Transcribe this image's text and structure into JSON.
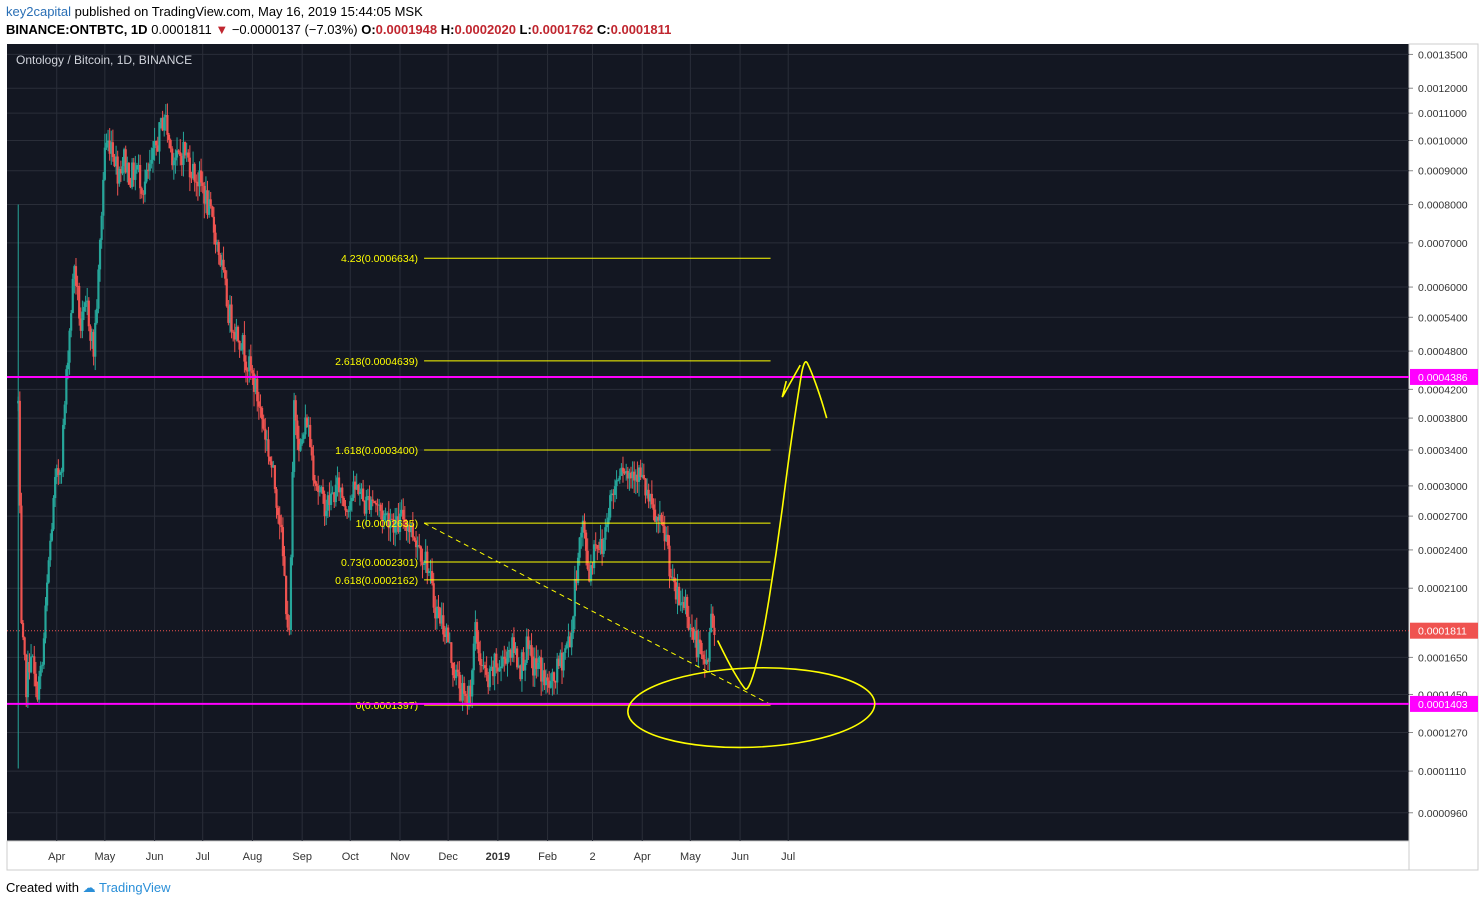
{
  "header": {
    "author": "key2capital",
    "published_text": "published on TradingView.com, May 16, 2019 15:44:05 MSK",
    "symbol": "BINANCE:ONTBTC, 1D",
    "last": "0.0001811",
    "change": "−0.0000137 (−7.03%)",
    "o_label": "O:",
    "o_value": "0.0001948",
    "h_label": "H:",
    "h_value": "0.0002020",
    "l_label": "L:",
    "l_value": "0.0001762",
    "c_label": "C:",
    "c_value": "0.0001811",
    "down_arrow": "▼"
  },
  "footer": {
    "created_with": "Created with",
    "brand": "TradingView"
  },
  "colors": {
    "background": "#131722",
    "grid": "#2a2e39",
    "up": "#26a69a",
    "down": "#ef5350",
    "fib": "#ffff00",
    "magenta": "#ff00ff",
    "last_price": "#ef5350"
  },
  "chart_data": {
    "type": "candlestick",
    "title": "Ontology / Bitcoin, 1D, BINANCE",
    "y_scale": "log",
    "ylim": [
      8.7e-05,
      0.0014
    ],
    "xlim": [
      "2019-03-01",
      "2020-07-22"
    ],
    "y_ticks": [
      0.00135,
      0.0012,
      0.0011,
      0.001,
      0.0009,
      0.0008,
      0.0007,
      0.0006,
      0.00054,
      0.00048,
      0.00042,
      0.00038,
      0.00034,
      0.0003,
      0.00027,
      0.00024,
      0.00021,
      0.000165,
      0.000145,
      0.000127,
      0.000111,
      9.6e-05
    ],
    "x_ticks": [
      {
        "label": "Apr",
        "date": "2018-04-01"
      },
      {
        "label": "May",
        "date": "2018-05-01"
      },
      {
        "label": "Jun",
        "date": "2018-06-01"
      },
      {
        "label": "Jul",
        "date": "2018-07-01"
      },
      {
        "label": "Aug",
        "date": "2018-08-01"
      },
      {
        "label": "Sep",
        "date": "2018-09-01"
      },
      {
        "label": "Oct",
        "date": "2018-10-01"
      },
      {
        "label": "Nov",
        "date": "2018-11-01"
      },
      {
        "label": "Dec",
        "date": "2018-12-01"
      },
      {
        "label": "2019",
        "date": "2019-01-01"
      },
      {
        "label": "Feb",
        "date": "2019-02-01"
      },
      {
        "label": "2",
        "date": "2019-03-01"
      },
      {
        "label": "Apr",
        "date": "2019-04-01"
      },
      {
        "label": "May",
        "date": "2019-05-01"
      },
      {
        "label": "Jun",
        "date": "2019-06-01"
      },
      {
        "label": "Jul",
        "date": "2019-07-01"
      }
    ],
    "price_path": [
      [
        "2018-03-08",
        0.0004
      ],
      [
        "2018-03-10",
        0.00018
      ],
      [
        "2018-03-13",
        0.00015
      ],
      [
        "2018-03-16",
        0.00017
      ],
      [
        "2018-03-19",
        0.000145
      ],
      [
        "2018-03-23",
        0.00016
      ],
      [
        "2018-03-27",
        0.00023
      ],
      [
        "2018-03-31",
        0.0003
      ],
      [
        "2018-04-04",
        0.00033
      ],
      [
        "2018-04-08",
        0.00048
      ],
      [
        "2018-04-12",
        0.00065
      ],
      [
        "2018-04-16",
        0.00052
      ],
      [
        "2018-04-20",
        0.00056
      ],
      [
        "2018-04-24",
        0.00048
      ],
      [
        "2018-04-27",
        0.00062
      ],
      [
        "2018-05-01",
        0.00098
      ],
      [
        "2018-05-05",
        0.001
      ],
      [
        "2018-05-09",
        0.0009
      ],
      [
        "2018-05-13",
        0.00094
      ],
      [
        "2018-05-17",
        0.00088
      ],
      [
        "2018-05-21",
        0.00091
      ],
      [
        "2018-05-25",
        0.00085
      ],
      [
        "2018-05-29",
        0.0009
      ],
      [
        "2018-06-03",
        0.001
      ],
      [
        "2018-06-07",
        0.0011
      ],
      [
        "2018-06-11",
        0.00097
      ],
      [
        "2018-06-15",
        0.00093
      ],
      [
        "2018-06-19",
        0.00097
      ],
      [
        "2018-06-23",
        0.00092
      ],
      [
        "2018-06-27",
        0.00088
      ],
      [
        "2018-07-01",
        0.00085
      ],
      [
        "2018-07-05",
        0.00078
      ],
      [
        "2018-07-09",
        0.00072
      ],
      [
        "2018-07-13",
        0.00064
      ],
      [
        "2018-07-17",
        0.00055
      ],
      [
        "2018-07-21",
        0.00052
      ],
      [
        "2018-07-25",
        0.0005
      ],
      [
        "2018-07-29",
        0.00046
      ],
      [
        "2018-08-02",
        0.00043
      ],
      [
        "2018-08-06",
        0.00039
      ],
      [
        "2018-08-10",
        0.00035
      ],
      [
        "2018-08-14",
        0.00031
      ],
      [
        "2018-08-18",
        0.00027
      ],
      [
        "2018-08-22",
        0.0002
      ],
      [
        "2018-08-24",
        0.000175
      ],
      [
        "2018-08-27",
        0.0004
      ],
      [
        "2018-08-31",
        0.00034
      ],
      [
        "2018-09-04",
        0.00038
      ],
      [
        "2018-09-08",
        0.00032
      ],
      [
        "2018-09-12",
        0.00029
      ],
      [
        "2018-09-16",
        0.00028
      ],
      [
        "2018-09-20",
        0.00029
      ],
      [
        "2018-09-24",
        0.0003
      ],
      [
        "2018-09-28",
        0.00028
      ],
      [
        "2018-10-02",
        0.00029
      ],
      [
        "2018-10-06",
        0.0003
      ],
      [
        "2018-10-10",
        0.00028
      ],
      [
        "2018-10-14",
        0.00029
      ],
      [
        "2018-10-18",
        0.00028
      ],
      [
        "2018-10-22",
        0.00027
      ],
      [
        "2018-10-26",
        0.00027
      ],
      [
        "2018-10-30",
        0.00026
      ],
      [
        "2018-11-03",
        0.00027
      ],
      [
        "2018-11-07",
        0.00026
      ],
      [
        "2018-11-11",
        0.00025
      ],
      [
        "2018-11-14",
        0.00024
      ],
      [
        "2018-11-18",
        0.00023
      ],
      [
        "2018-11-22",
        0.0002
      ],
      [
        "2018-11-26",
        0.00019
      ],
      [
        "2018-11-30",
        0.00018
      ],
      [
        "2018-12-04",
        0.00016
      ],
      [
        "2018-12-08",
        0.00015
      ],
      [
        "2018-12-12",
        0.00014
      ],
      [
        "2018-12-15",
        0.00015
      ],
      [
        "2018-12-18",
        0.00018
      ],
      [
        "2018-12-22",
        0.00016
      ],
      [
        "2018-12-26",
        0.00015
      ],
      [
        "2018-12-30",
        0.00016
      ],
      [
        "2019-01-03",
        0.00016
      ],
      [
        "2019-01-07",
        0.00017
      ],
      [
        "2019-01-11",
        0.00017
      ],
      [
        "2019-01-15",
        0.00016
      ],
      [
        "2019-01-19",
        0.00017
      ],
      [
        "2019-01-23",
        0.00016
      ],
      [
        "2019-01-27",
        0.00016
      ],
      [
        "2019-01-31",
        0.00015
      ],
      [
        "2019-02-04",
        0.00015
      ],
      [
        "2019-02-08",
        0.00016
      ],
      [
        "2019-02-12",
        0.00017
      ],
      [
        "2019-02-16",
        0.00018
      ],
      [
        "2019-02-20",
        0.00024
      ],
      [
        "2019-02-23",
        0.00026
      ],
      [
        "2019-02-27",
        0.00022
      ],
      [
        "2019-03-03",
        0.00025
      ],
      [
        "2019-03-07",
        0.00024
      ],
      [
        "2019-03-11",
        0.00028
      ],
      [
        "2019-03-15",
        0.0003
      ],
      [
        "2019-03-19",
        0.00033
      ],
      [
        "2019-03-23",
        0.00031
      ],
      [
        "2019-03-27",
        0.00032
      ],
      [
        "2019-03-31",
        0.00031
      ],
      [
        "2019-04-04",
        0.00029
      ],
      [
        "2019-04-08",
        0.00027
      ],
      [
        "2019-04-12",
        0.00026
      ],
      [
        "2019-04-16",
        0.00025
      ],
      [
        "2019-04-20",
        0.00021
      ],
      [
        "2019-04-24",
        0.0002
      ],
      [
        "2019-04-28",
        0.0002
      ],
      [
        "2019-05-02",
        0.00018
      ],
      [
        "2019-05-06",
        0.00017
      ],
      [
        "2019-05-09",
        0.00016
      ],
      [
        "2019-05-12",
        0.000165
      ],
      [
        "2019-05-14",
        0.00019
      ],
      [
        "2019-05-16",
        0.0001811
      ]
    ],
    "fib_levels": [
      {
        "label": "4.23(0.0006634)",
        "value": 0.0006634
      },
      {
        "label": "2.618(0.0004639)",
        "value": 0.0004639
      },
      {
        "label": "1.618(0.0003400)",
        "value": 0.00034
      },
      {
        "label": "1(0.0002635)",
        "value": 0.0002635
      },
      {
        "label": "0.73(0.0002301)",
        "value": 0.0002301
      },
      {
        "label": "0.618(0.0002162)",
        "value": 0.0002162
      },
      {
        "label": "0(0.0001397)",
        "value": 0.0001397
      }
    ],
    "fib_start": "2018-11-16",
    "fib_end": "2019-06-20",
    "horizontal_lines": [
      {
        "label": "0.0004386",
        "value": 0.0004386,
        "color": "#ff00ff"
      },
      {
        "label": "0.0001403",
        "value": 0.0001403,
        "color": "#ff00ff"
      }
    ],
    "last_price": {
      "label": "0.0001811",
      "value": 0.0001811
    },
    "trendline": {
      "start": [
        "2018-11-16",
        0.0002635
      ],
      "end": [
        "2019-06-20",
        0.00014
      ]
    },
    "forecast_path": [
      [
        "2019-05-18",
        0.000175
      ],
      [
        "2019-05-26",
        0.00016
      ],
      [
        "2019-06-02",
        0.00015
      ],
      [
        "2019-06-06",
        0.000146
      ],
      [
        "2019-06-14",
        0.00017
      ],
      [
        "2019-06-24",
        0.00024
      ],
      [
        "2019-07-02",
        0.00034
      ],
      [
        "2019-07-07",
        0.00041
      ],
      [
        "2019-07-11",
        0.00047
      ],
      [
        "2019-07-15",
        0.00045
      ],
      [
        "2019-07-21",
        0.00041
      ],
      [
        "2019-07-25",
        0.00038
      ]
    ],
    "ellipse": {
      "center": [
        "2019-06-03",
        0.0001385
      ],
      "rx_days": 22,
      "ry_factor": 1.1
    }
  }
}
